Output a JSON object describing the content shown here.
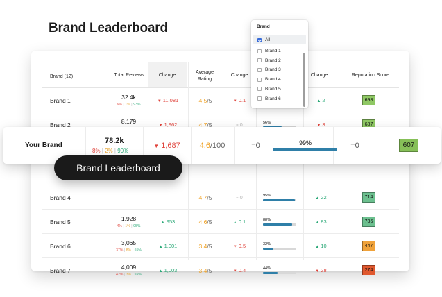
{
  "page": {
    "title": "Brand Leaderboard"
  },
  "table": {
    "headers": {
      "brand": "Brand (12)",
      "total_reviews": "Total Reviews",
      "change1": "Change",
      "avg_rating": "Average Rating",
      "change2": "Change",
      "change3": "Change",
      "reputation": "Reputation Score"
    },
    "rows": [
      {
        "brand": "Brand 1",
        "total": "32.4k",
        "split_neg": "6%",
        "split_neu": "1%",
        "split_pos": "93%",
        "change1": "11,081",
        "change1_dir": "down",
        "rating": "4.5",
        "rating_den": "/5",
        "change2": "0.1",
        "change2_dir": "down",
        "change3": "2",
        "change3_dir": "up",
        "score": "698",
        "score_color": "#8fc864"
      },
      {
        "brand": "Brand 2",
        "total": "8,179",
        "split_neg": "2%",
        "split_neu": "1%",
        "split_pos": "97%",
        "change1": "1,962",
        "change1_dir": "down",
        "rating": "4.7",
        "rating_den": "/5",
        "change2": "0",
        "change2_dir": "flat",
        "pct": "56%",
        "pct_value": 56,
        "change3": "3",
        "change3_dir": "down",
        "score": "687",
        "score_color": "#8fc864"
      },
      {
        "brand": "Brand 4",
        "total": "",
        "split_neg": "",
        "split_neu": "",
        "split_pos": "",
        "change1": "",
        "change1_dir": "up",
        "rating": "4.7",
        "rating_den": "/5",
        "change2": "0",
        "change2_dir": "flat",
        "pct": "95%",
        "pct_value": 95,
        "change3": "22",
        "change3_dir": "up",
        "score": "714",
        "score_color": "#6cc08f"
      },
      {
        "brand": "Brand 5",
        "total": "1,928",
        "split_neg": "4%",
        "split_neu": "1%",
        "split_pos": "95%",
        "change1": "953",
        "change1_dir": "up",
        "rating": "4.6",
        "rating_den": "/5",
        "change2": "0.1",
        "change2_dir": "up",
        "pct": "88%",
        "pct_value": 88,
        "change3": "83",
        "change3_dir": "up",
        "score": "736",
        "score_color": "#6cc08f"
      },
      {
        "brand": "Brand 6",
        "total": "3,065",
        "split_neg": "37%",
        "split_neu": "8%",
        "split_pos": "55%",
        "change1": "1,001",
        "change1_dir": "up",
        "rating": "3.4",
        "rating_den": "/5",
        "change2": "0.5",
        "change2_dir": "down",
        "pct": "32%",
        "pct_value": 32,
        "change3": "10",
        "change3_dir": "up",
        "score": "447",
        "score_color": "#f0a23a"
      },
      {
        "brand": "Brand 7",
        "total": "4,009",
        "split_neg": "42%",
        "split_neu": "3%",
        "split_pos": "55%",
        "change1": "1,003",
        "change1_dir": "up",
        "rating": "3.4",
        "rating_den": "/5",
        "change2": "0.4",
        "change2_dir": "down",
        "pct": "44%",
        "pct_value": 44,
        "change3": "28",
        "change3_dir": "down",
        "score": "274",
        "score_color": "#e0582e"
      }
    ]
  },
  "your_brand": {
    "name": "Your Brand",
    "total": "78.2k",
    "split_neg": "8%",
    "split_neu": "2%",
    "split_pos": "90%",
    "change1": "1,687",
    "change1_dir": "down",
    "rating": "4.6",
    "rating_den": "/100",
    "change2": "=0",
    "pct": "99%",
    "pct_value": 99,
    "change3": "=0",
    "score": "607",
    "score_color": "#86c058"
  },
  "pill_label": "Brand Leaderboard",
  "dropdown": {
    "title": "Brand",
    "items": [
      {
        "label": "All",
        "checked": true
      },
      {
        "label": "Brand 1",
        "checked": false
      },
      {
        "label": "Brand 2",
        "checked": false
      },
      {
        "label": "Brand 3",
        "checked": false
      },
      {
        "label": "Brand 4",
        "checked": false
      },
      {
        "label": "Brand 5",
        "checked": false
      },
      {
        "label": "Brand 6",
        "checked": false
      }
    ]
  }
}
